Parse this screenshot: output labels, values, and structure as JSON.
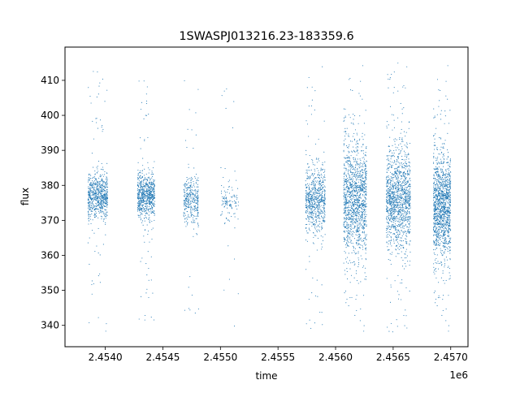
{
  "chart_data": {
    "type": "scatter",
    "title": "1SWASPJ013216.23-183359.6",
    "xlabel": "time",
    "ylabel": "flux",
    "x_offset_label": "1e6",
    "xlim": [
      2.45365,
      2.45715
    ],
    "ylim": [
      333.9,
      419.5
    ],
    "x_ticks": [
      2.454,
      2.4545,
      2.455,
      2.4555,
      2.456,
      2.4565,
      2.457
    ],
    "x_tick_labels": [
      "2.4540",
      "2.4545",
      "2.4550",
      "2.4555",
      "2.4560",
      "2.4565",
      "2.4570"
    ],
    "y_ticks": [
      340,
      350,
      360,
      370,
      380,
      390,
      400,
      410
    ],
    "y_tick_labels": [
      "340",
      "350",
      "360",
      "370",
      "380",
      "390",
      "400",
      "410"
    ],
    "grid": false,
    "legend": "none",
    "marker_color": "#1f77b4",
    "series": [
      {
        "x_unit": "1e6",
        "observing_seasons": [
          {
            "x_start": 2.45385,
            "x_end": 2.45402,
            "center": 377,
            "core_halfwidth": 4,
            "min": 338,
            "max": 415,
            "density": "high"
          },
          {
            "x_start": 2.45428,
            "x_end": 2.45443,
            "center": 377,
            "core_halfwidth": 4,
            "min": 338,
            "max": 413,
            "density": "high"
          },
          {
            "x_start": 2.45468,
            "x_end": 2.45481,
            "center": 376,
            "core_halfwidth": 4,
            "min": 341,
            "max": 413,
            "density": "medium"
          },
          {
            "x_start": 2.455,
            "x_end": 2.45516,
            "center": 376,
            "core_halfwidth": 4,
            "min": 338,
            "max": 410,
            "density": "low"
          },
          {
            "x_start": 2.45574,
            "x_end": 2.45591,
            "center": 376,
            "core_halfwidth": 6,
            "min": 339,
            "max": 415,
            "density": "high"
          },
          {
            "x_start": 2.45607,
            "x_end": 2.45627,
            "center": 376,
            "core_halfwidth": 10,
            "min": 338,
            "max": 415,
            "density": "very high"
          },
          {
            "x_start": 2.45644,
            "x_end": 2.45665,
            "center": 376,
            "core_halfwidth": 9,
            "min": 338,
            "max": 415,
            "density": "very high"
          },
          {
            "x_start": 2.45685,
            "x_end": 2.457,
            "center": 374,
            "core_halfwidth": 9,
            "min": 338,
            "max": 415,
            "density": "very high"
          }
        ]
      }
    ]
  }
}
